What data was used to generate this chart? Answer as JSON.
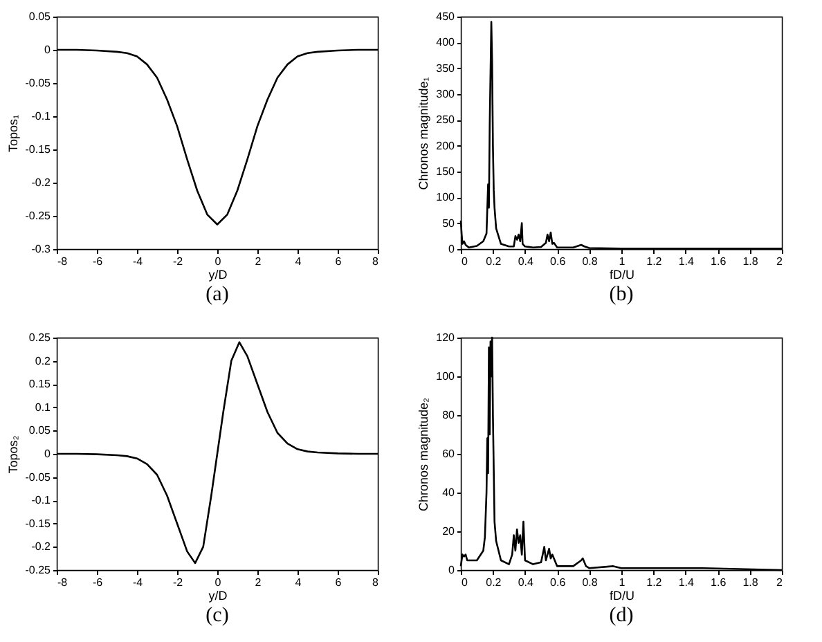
{
  "chart_data": [
    {
      "type": "line",
      "xlabel": "y/D",
      "ylabel": "Topos₁",
      "annotations": [
        "(a)"
      ],
      "xlim": [
        -8,
        8
      ],
      "ylim": [
        -0.3,
        0.05
      ],
      "xticks": [
        -8,
        -6,
        -4,
        -2,
        0,
        2,
        4,
        6,
        8
      ],
      "yticks": [
        0.05,
        0,
        -0.05,
        -0.1,
        -0.15,
        -0.2,
        -0.25,
        -0.3
      ],
      "x": [
        -8,
        -7,
        -6,
        -5,
        -4.5,
        -4,
        -3.5,
        -3,
        -2.5,
        -2,
        -1.5,
        -1,
        -0.5,
        0,
        0.5,
        1,
        1.5,
        2,
        2.5,
        3,
        3.5,
        4,
        4.5,
        5,
        6,
        7,
        8
      ],
      "series": [
        {
          "color": "#000000",
          "values": [
            0,
            0,
            -0.001,
            -0.003,
            -0.005,
            -0.01,
            -0.022,
            -0.042,
            -0.075,
            -0.115,
            -0.165,
            -0.212,
            -0.248,
            -0.263,
            -0.248,
            -0.212,
            -0.165,
            -0.115,
            -0.075,
            -0.042,
            -0.022,
            -0.01,
            -0.005,
            -0.003,
            -0.001,
            0,
            0
          ]
        }
      ]
    },
    {
      "type": "line",
      "xlabel": "fD/U",
      "ylabel": "Chronos magnitude₁",
      "annotations": [
        "(b)"
      ],
      "xlim": [
        0,
        2
      ],
      "ylim": [
        0,
        450
      ],
      "xticks": [
        0,
        0.2,
        0.4,
        0.6,
        0.8,
        1,
        1.2,
        1.4,
        1.6,
        1.8,
        2
      ],
      "yticks": [
        0,
        50,
        100,
        150,
        200,
        250,
        300,
        350,
        400,
        450
      ],
      "x": [
        0,
        0.005,
        0.01,
        0.02,
        0.03,
        0.05,
        0.1,
        0.14,
        0.16,
        0.17,
        0.175,
        0.18,
        0.19,
        0.195,
        0.2,
        0.205,
        0.21,
        0.22,
        0.25,
        0.3,
        0.33,
        0.34,
        0.35,
        0.36,
        0.37,
        0.38,
        0.385,
        0.4,
        0.45,
        0.5,
        0.53,
        0.54,
        0.55,
        0.56,
        0.57,
        0.58,
        0.6,
        0.7,
        0.75,
        0.77,
        0.8,
        1,
        1.5,
        2
      ],
      "series": [
        {
          "color": "#000000",
          "values": [
            55,
            30,
            10,
            15,
            8,
            3,
            6,
            15,
            30,
            125,
            80,
            240,
            440,
            360,
            200,
            115,
            80,
            40,
            10,
            5,
            5,
            25,
            18,
            28,
            15,
            50,
            10,
            5,
            3,
            4,
            12,
            28,
            15,
            32,
            10,
            12,
            3,
            3,
            8,
            5,
            2,
            1,
            1,
            1
          ]
        }
      ]
    },
    {
      "type": "line",
      "xlabel": "y/D",
      "ylabel": "Topos₂",
      "annotations": [
        "(c)"
      ],
      "xlim": [
        -8,
        8
      ],
      "ylim": [
        -0.25,
        0.25
      ],
      "xticks": [
        -8,
        -6,
        -4,
        -2,
        0,
        2,
        4,
        6,
        8
      ],
      "yticks": [
        0.25,
        0.2,
        0.15,
        0.1,
        0.05,
        0,
        -0.05,
        -0.1,
        -0.15,
        -0.2,
        -0.25
      ],
      "x": [
        -8,
        -7,
        -6,
        -5,
        -4.5,
        -4,
        -3.5,
        -3,
        -2.5,
        -2,
        -1.5,
        -1.1,
        -0.7,
        -0.3,
        0,
        0.3,
        0.7,
        1.1,
        1.5,
        2,
        2.5,
        3,
        3.5,
        4,
        4.5,
        5,
        6,
        7,
        8
      ],
      "series": [
        {
          "color": "#000000",
          "values": [
            0,
            0,
            -0.001,
            -0.003,
            -0.005,
            -0.01,
            -0.022,
            -0.045,
            -0.09,
            -0.15,
            -0.21,
            -0.235,
            -0.2,
            -0.09,
            0,
            0.09,
            0.2,
            0.24,
            0.21,
            0.15,
            0.09,
            0.045,
            0.022,
            0.01,
            0.005,
            0.003,
            0.001,
            0,
            0
          ]
        }
      ]
    },
    {
      "type": "line",
      "xlabel": "fD/U",
      "ylabel": "Chronos magnitude₂",
      "annotations": [
        "(d)"
      ],
      "xlim": [
        0,
        2
      ],
      "ylim": [
        0,
        120
      ],
      "xticks": [
        0,
        0.2,
        0.4,
        0.6,
        0.8,
        1,
        1.2,
        1.4,
        1.6,
        1.8,
        2
      ],
      "yticks": [
        0,
        20,
        40,
        60,
        80,
        100,
        120
      ],
      "x": [
        0,
        0.01,
        0.02,
        0.03,
        0.04,
        0.1,
        0.14,
        0.15,
        0.16,
        0.165,
        0.17,
        0.175,
        0.18,
        0.185,
        0.19,
        0.195,
        0.2,
        0.21,
        0.22,
        0.25,
        0.3,
        0.32,
        0.33,
        0.34,
        0.35,
        0.36,
        0.37,
        0.38,
        0.39,
        0.4,
        0.45,
        0.5,
        0.52,
        0.53,
        0.55,
        0.56,
        0.57,
        0.6,
        0.7,
        0.75,
        0.76,
        0.78,
        0.8,
        0.95,
        1,
        1.5,
        2
      ],
      "series": [
        {
          "color": "#000000",
          "values": [
            2,
            8,
            7,
            8,
            5,
            5,
            10,
            17,
            40,
            68,
            50,
            115,
            70,
            118,
            100,
            120,
            80,
            25,
            15,
            5,
            3,
            8,
            18,
            10,
            21,
            14,
            18,
            8,
            25,
            5,
            3,
            4,
            12,
            5,
            11,
            6,
            8,
            2,
            2,
            5,
            6,
            2,
            1,
            2,
            1,
            1,
            0
          ]
        }
      ]
    }
  ]
}
